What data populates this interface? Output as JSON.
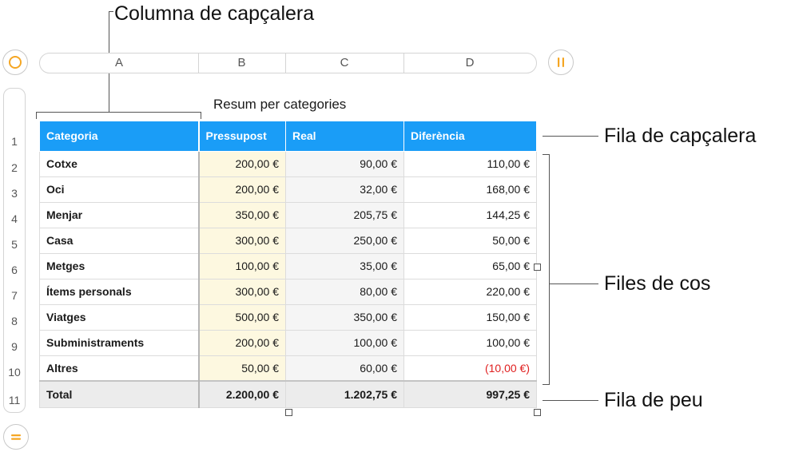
{
  "callouts": {
    "header_column": "Columna de capçalera",
    "header_row": "Fila de capçalera",
    "body_rows": "Files de cos",
    "footer_row": "Fila de peu"
  },
  "column_letters": [
    "A",
    "B",
    "C",
    "D"
  ],
  "row_numbers": [
    "1",
    "2",
    "3",
    "4",
    "5",
    "6",
    "7",
    "8",
    "9",
    "10",
    "11"
  ],
  "table": {
    "title": "Resum per categories",
    "headers": [
      "Categoria",
      "Pressupost",
      "Real",
      "Diferència"
    ],
    "rows": [
      [
        "Cotxe",
        "200,00 €",
        "90,00 €",
        "110,00 €"
      ],
      [
        "Oci",
        "200,00 €",
        "32,00 €",
        "168,00 €"
      ],
      [
        "Menjar",
        "350,00 €",
        "205,75 €",
        "144,25 €"
      ],
      [
        "Casa",
        "300,00 €",
        "250,00 €",
        "50,00 €"
      ],
      [
        "Metges",
        "100,00 €",
        "35,00 €",
        "65,00 €"
      ],
      [
        "Ítems personals",
        "300,00 €",
        "80,00 €",
        "220,00 €"
      ],
      [
        "Viatges",
        "500,00 €",
        "350,00 €",
        "150,00 €"
      ],
      [
        "Subministraments",
        "200,00 €",
        "100,00 €",
        "100,00 €"
      ],
      [
        "Altres",
        "50,00 €",
        "60,00 €",
        "(10,00 €)"
      ]
    ],
    "footer": [
      "Total",
      "2.200,00 €",
      "1.202,75 €",
      "997,25 €"
    ]
  },
  "colors": {
    "header_fill": "#1a9df7",
    "negative_value": "#e02020",
    "control_accent": "#f5a623"
  },
  "icons": {
    "top_left": "circle-select-icon",
    "top_right": "pause-columns-icon",
    "bottom_left": "equals-icon"
  }
}
